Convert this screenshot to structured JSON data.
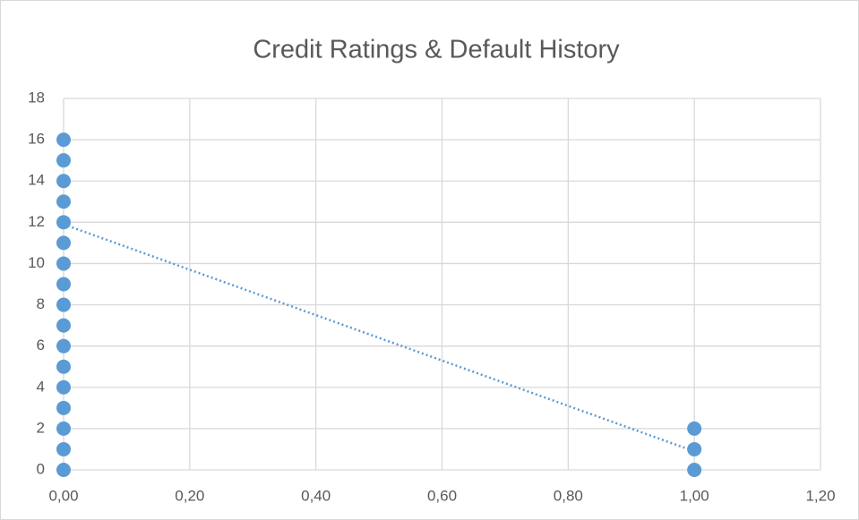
{
  "chart_data": {
    "type": "scatter",
    "title": "Credit Ratings & Default History",
    "series": [
      {
        "color": "#5b9bd5",
        "x": [
          0,
          0,
          0,
          0,
          0,
          0,
          0,
          0,
          0,
          0,
          0,
          0,
          0,
          0,
          0,
          0,
          0,
          1,
          1,
          1
        ],
        "values": [
          0,
          1,
          2,
          3,
          4,
          5,
          6,
          7,
          8,
          9,
          10,
          11,
          12,
          13,
          14,
          15,
          16,
          0,
          1,
          2
        ]
      }
    ],
    "trendline": {
      "color": "#5b9bd5",
      "style": "dotted",
      "x": [
        0,
        1
      ],
      "values": [
        11.9,
        0.9
      ]
    },
    "xlim": [
      0,
      1.2
    ],
    "xticks": [
      {
        "value": 0,
        "label": "0,00"
      },
      {
        "value": 0.2,
        "label": "0,20"
      },
      {
        "value": 0.4,
        "label": "0,40"
      },
      {
        "value": 0.6,
        "label": "0,60"
      },
      {
        "value": 0.8,
        "label": "0,80"
      },
      {
        "value": 1,
        "label": "1,00"
      },
      {
        "value": 1.2,
        "label": "1,20"
      }
    ],
    "ylim": [
      0,
      18
    ],
    "yticks": [
      0,
      2,
      4,
      6,
      8,
      10,
      12,
      14,
      16,
      18
    ],
    "grid": true
  }
}
